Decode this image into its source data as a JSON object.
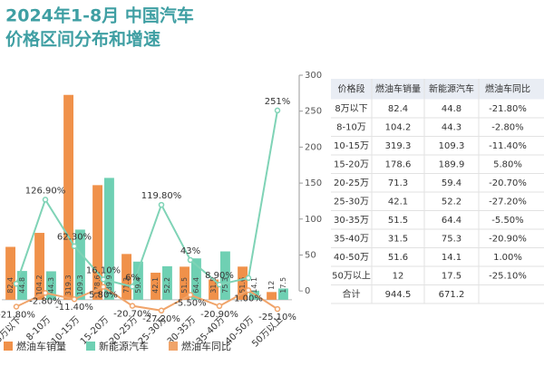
{
  "header": {
    "title_line1": "2024年1-8月 中国汽车",
    "title_line2": "价格区间分布和增速"
  },
  "chart_data": {
    "type": "bar-line",
    "categories": [
      "8万以下",
      "8-10万",
      "10-15万",
      "15-20万",
      "20-25万",
      "25-30万",
      "30-35万",
      "35-40万",
      "40-50万",
      "50万以上"
    ],
    "ylim": [
      -20,
      350
    ],
    "y2lim": [
      -30,
      300
    ],
    "y2ticks": [
      0,
      50,
      100,
      150,
      200,
      250,
      300
    ],
    "series": [
      {
        "name": "燃油车销量",
        "color": "#f0914a",
        "values": [
          82.4,
          104.2,
          319.3,
          178.6,
          71.3,
          42.1,
          51.5,
          31.5,
          51.6,
          12
        ],
        "value_labels": [
          "82.4",
          "104.2",
          "319.3",
          "178.6",
          "71.3",
          "42.1",
          "51.5",
          "31.5",
          "51.6",
          "12"
        ]
      },
      {
        "name": "新能源汽车",
        "color": "#6fd0b3",
        "values": [
          44.8,
          44.3,
          109.3,
          189.9,
          59.4,
          52.2,
          64.4,
          75.3,
          14.1,
          17.5
        ],
        "value_labels": [
          "44.8",
          "44.3",
          "109.3",
          "189.9",
          "59.4",
          "52.2",
          "64.4",
          "75.3",
          "14.1",
          "17.5"
        ]
      },
      {
        "name": "燃油车同比",
        "axis": "y2",
        "color": "#f0a46a",
        "values": [
          -21.8,
          -2.8,
          -11.4,
          5.8,
          -20.7,
          -27.2,
          -5.5,
          -20.9,
          1.0,
          -25.1
        ],
        "value_labels": [
          "-21.80%",
          "-2.80%",
          "-11.40%",
          "5.80%",
          "-20.70%",
          "-27.20%",
          "-5.50%",
          "-20.90%",
          "1.00%",
          "-25.10%"
        ]
      },
      {
        "axis": "y2",
        "color": "#7fd3b6",
        "values": [
          10,
          126.9,
          62.3,
          16.1,
          6,
          119.8,
          43,
          8.9,
          18,
          251
        ],
        "value_labels": [
          null,
          "126.90%",
          "62.30%",
          "16.10%",
          "6%",
          "119.80%",
          "43%",
          "8.90%",
          null,
          "251%"
        ]
      }
    ]
  },
  "table": {
    "headers": [
      "价格段",
      "燃油车销量",
      "新能源汽车",
      "燃油车同比"
    ],
    "rows": [
      [
        "8万以下",
        "82.4",
        "44.8",
        "-21.80%"
      ],
      [
        "8-10万",
        "104.2",
        "44.3",
        "-2.80%"
      ],
      [
        "10-15万",
        "319.3",
        "109.3",
        "-11.40%"
      ],
      [
        "15-20万",
        "178.6",
        "189.9",
        "5.80%"
      ],
      [
        "20-25万",
        "71.3",
        "59.4",
        "-20.70%"
      ],
      [
        "25-30万",
        "42.1",
        "52.2",
        "-27.20%"
      ],
      [
        "30-35万",
        "51.5",
        "64.4",
        "-5.50%"
      ],
      [
        "35-40万",
        "31.5",
        "75.3",
        "-20.90%"
      ],
      [
        "40-50万",
        "51.6",
        "14.1",
        "1.00%"
      ],
      [
        "50万以上",
        "12",
        "17.5",
        "-25.10%"
      ],
      [
        "合计",
        "944.5",
        "671.2",
        null
      ]
    ]
  }
}
